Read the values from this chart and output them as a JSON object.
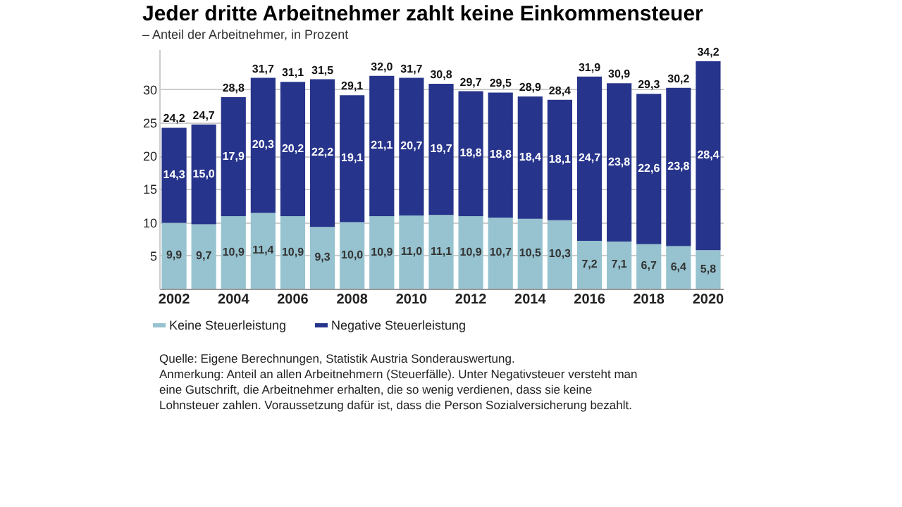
{
  "chart_data": {
    "type": "bar",
    "stacked": true,
    "title": "Jeder dritte Arbeitnehmer zahlt keine Einkommensteuer",
    "subtitle": "– Anteil der Arbeitnehmer, in Prozent",
    "categories": [
      "2002",
      null,
      "2004",
      null,
      "2006",
      null,
      "2008",
      null,
      "2010",
      null,
      "2012",
      null,
      "2014",
      null,
      "2016",
      null,
      "2018",
      null,
      "2020"
    ],
    "series": [
      {
        "name": "Keine Steuerleistung",
        "color": "#96c3cf",
        "values": [
          9.9,
          9.7,
          10.9,
          11.4,
          10.9,
          9.3,
          10.0,
          10.9,
          11.0,
          11.1,
          10.9,
          10.7,
          10.5,
          10.3,
          7.2,
          7.1,
          6.7,
          6.4,
          5.8
        ],
        "value_labels": [
          "9,9",
          "9,7",
          "10,9",
          "11,4",
          "10,9",
          "9,3",
          "10,0",
          "10,9",
          "11,0",
          "11,1",
          "10,9",
          "10,7",
          "10,5",
          "10,3",
          "7,2",
          "7,1",
          "6,7",
          "6,4",
          "5,8"
        ]
      },
      {
        "name": "Negative Steuerleistung",
        "color": "#27348b",
        "values": [
          14.3,
          15.0,
          17.9,
          20.3,
          20.2,
          22.2,
          19.1,
          21.1,
          20.7,
          19.7,
          18.8,
          18.8,
          18.4,
          18.1,
          24.7,
          23.8,
          22.6,
          23.8,
          28.4
        ],
        "value_labels": [
          "14,3",
          "15,0",
          "17,9",
          "20,3",
          "20,2",
          "22,2",
          "19,1",
          "21,1",
          "20,7",
          "19,7",
          "18,8",
          "18,8",
          "18,4",
          "18,1",
          "24,7",
          "23,8",
          "22,6",
          "23,8",
          "28,4"
        ]
      }
    ],
    "totals": [
      "24,2",
      "24,7",
      "28,8",
      "31,7",
      "31,1",
      "31,5",
      "29,1",
      "32,0",
      "31,7",
      "30,8",
      "29,7",
      "29,5",
      "28,9",
      "28,4",
      "31,9",
      "30,9",
      "29,3",
      "30,2",
      "34,2"
    ],
    "ylim": [
      0,
      36
    ],
    "yticks": [
      5,
      10,
      15,
      20,
      25,
      30
    ],
    "grid": "y",
    "legend": "bottom left",
    "annotations": [
      "Quelle: Eigene Berechnungen, Statistik Austria Sonderauswertung.",
      "Anmerkung: Anteil an allen Arbeitnehmern (Steuerfälle). Unter Negativsteuer versteht man eine Gutschrift, die Arbeitnehmer erhalten, die so wenig verdienen, dass sie keine Lohnsteuer zahlen. Voraussetzung dafür ist, dass die Person Sozialversicherung bezahlt."
    ]
  }
}
